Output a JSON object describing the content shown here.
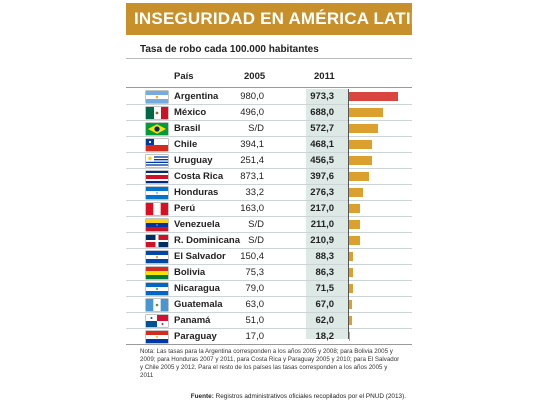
{
  "title": "INSEGURIDAD EN AMÉRICA LATINA",
  "subtitle": "Tasa de robo cada 100.000 habitantes",
  "headers": {
    "country": "País",
    "y2005": "2005",
    "y2011": "2011"
  },
  "colors": {
    "title_band": "#c8902a",
    "bar_top": "#d9463f",
    "bar": "#dba02e",
    "col2011": "#dde9e5"
  },
  "chart_data": {
    "type": "bar",
    "orientation": "horizontal",
    "title": "INSEGURIDAD EN AMÉRICA LATINA",
    "subtitle": "Tasa de robo cada 100.000 habitantes",
    "categories": [
      "Argentina",
      "México",
      "Brasil",
      "Chile",
      "Uruguay",
      "Costa Rica",
      "Honduras",
      "Perú",
      "Venezuela",
      "R. Dominicana",
      "El Salvador",
      "Bolivia",
      "Nicaragua",
      "Guatemala",
      "Panamá",
      "Paraguay"
    ],
    "series": [
      {
        "name": "2011",
        "values": [
          973.3,
          688.0,
          572.7,
          468.1,
          456.5,
          397.6,
          276.3,
          217.0,
          211.0,
          210.9,
          88.3,
          86.3,
          71.5,
          67.0,
          62.0,
          18.2
        ]
      }
    ],
    "xlim": [
      0,
      1000
    ]
  },
  "rows": [
    {
      "country": "Argentina",
      "flag": "argentina-flag-icon",
      "y2005": "980,0",
      "y2011": "973,3"
    },
    {
      "country": "México",
      "flag": "mexico-flag-icon",
      "y2005": "496,0",
      "y2011": "688,0"
    },
    {
      "country": "Brasil",
      "flag": "brazil-flag-icon",
      "y2005": "S/D",
      "y2011": "572,7"
    },
    {
      "country": "Chile",
      "flag": "chile-flag-icon",
      "y2005": "394,1",
      "y2011": "468,1"
    },
    {
      "country": "Uruguay",
      "flag": "uruguay-flag-icon",
      "y2005": "251,4",
      "y2011": "456,5"
    },
    {
      "country": "Costa Rica",
      "flag": "costa-rica-flag-icon",
      "y2005": "873,1",
      "y2011": "397,6"
    },
    {
      "country": "Honduras",
      "flag": "honduras-flag-icon",
      "y2005": "33,2",
      "y2011": "276,3"
    },
    {
      "country": "Perú",
      "flag": "peru-flag-icon",
      "y2005": "163,0",
      "y2011": "217,0"
    },
    {
      "country": "Venezuela",
      "flag": "venezuela-flag-icon",
      "y2005": "S/D",
      "y2011": "211,0"
    },
    {
      "country": "R. Dominicana",
      "flag": "dominican-republic-flag-icon",
      "y2005": "S/D",
      "y2011": "210,9"
    },
    {
      "country": "El Salvador",
      "flag": "el-salvador-flag-icon",
      "y2005": "150,4",
      "y2011": "88,3"
    },
    {
      "country": "Bolivia",
      "flag": "bolivia-flag-icon",
      "y2005": "75,3",
      "y2011": "86,3"
    },
    {
      "country": "Nicaragua",
      "flag": "nicaragua-flag-icon",
      "y2005": "79,0",
      "y2011": "71,5"
    },
    {
      "country": "Guatemala",
      "flag": "guatemala-flag-icon",
      "y2005": "63,0",
      "y2011": "67,0"
    },
    {
      "country": "Panamá",
      "flag": "panama-flag-icon",
      "y2005": "51,0",
      "y2011": "62,0"
    },
    {
      "country": "Paraguay",
      "flag": "paraguay-flag-icon",
      "y2005": "17,0",
      "y2011": "18,2"
    }
  ],
  "note": "Nota: Las tasas para la Argentina corresponden a los años 2005 y 2008; para Bolivia 2005 y 2009; para Honduras 2007 y 2011, para Costa Rica y Paraguay 2005 y 2010; para El Salvador y Chile 2005 y 2012. Para el resto de los países las tasas corresponden a los años 2005 y 2011",
  "source": {
    "label": "Fuente:",
    "text": "Registros administrativos oficiales recopilados por el PNUD (2013)."
  }
}
